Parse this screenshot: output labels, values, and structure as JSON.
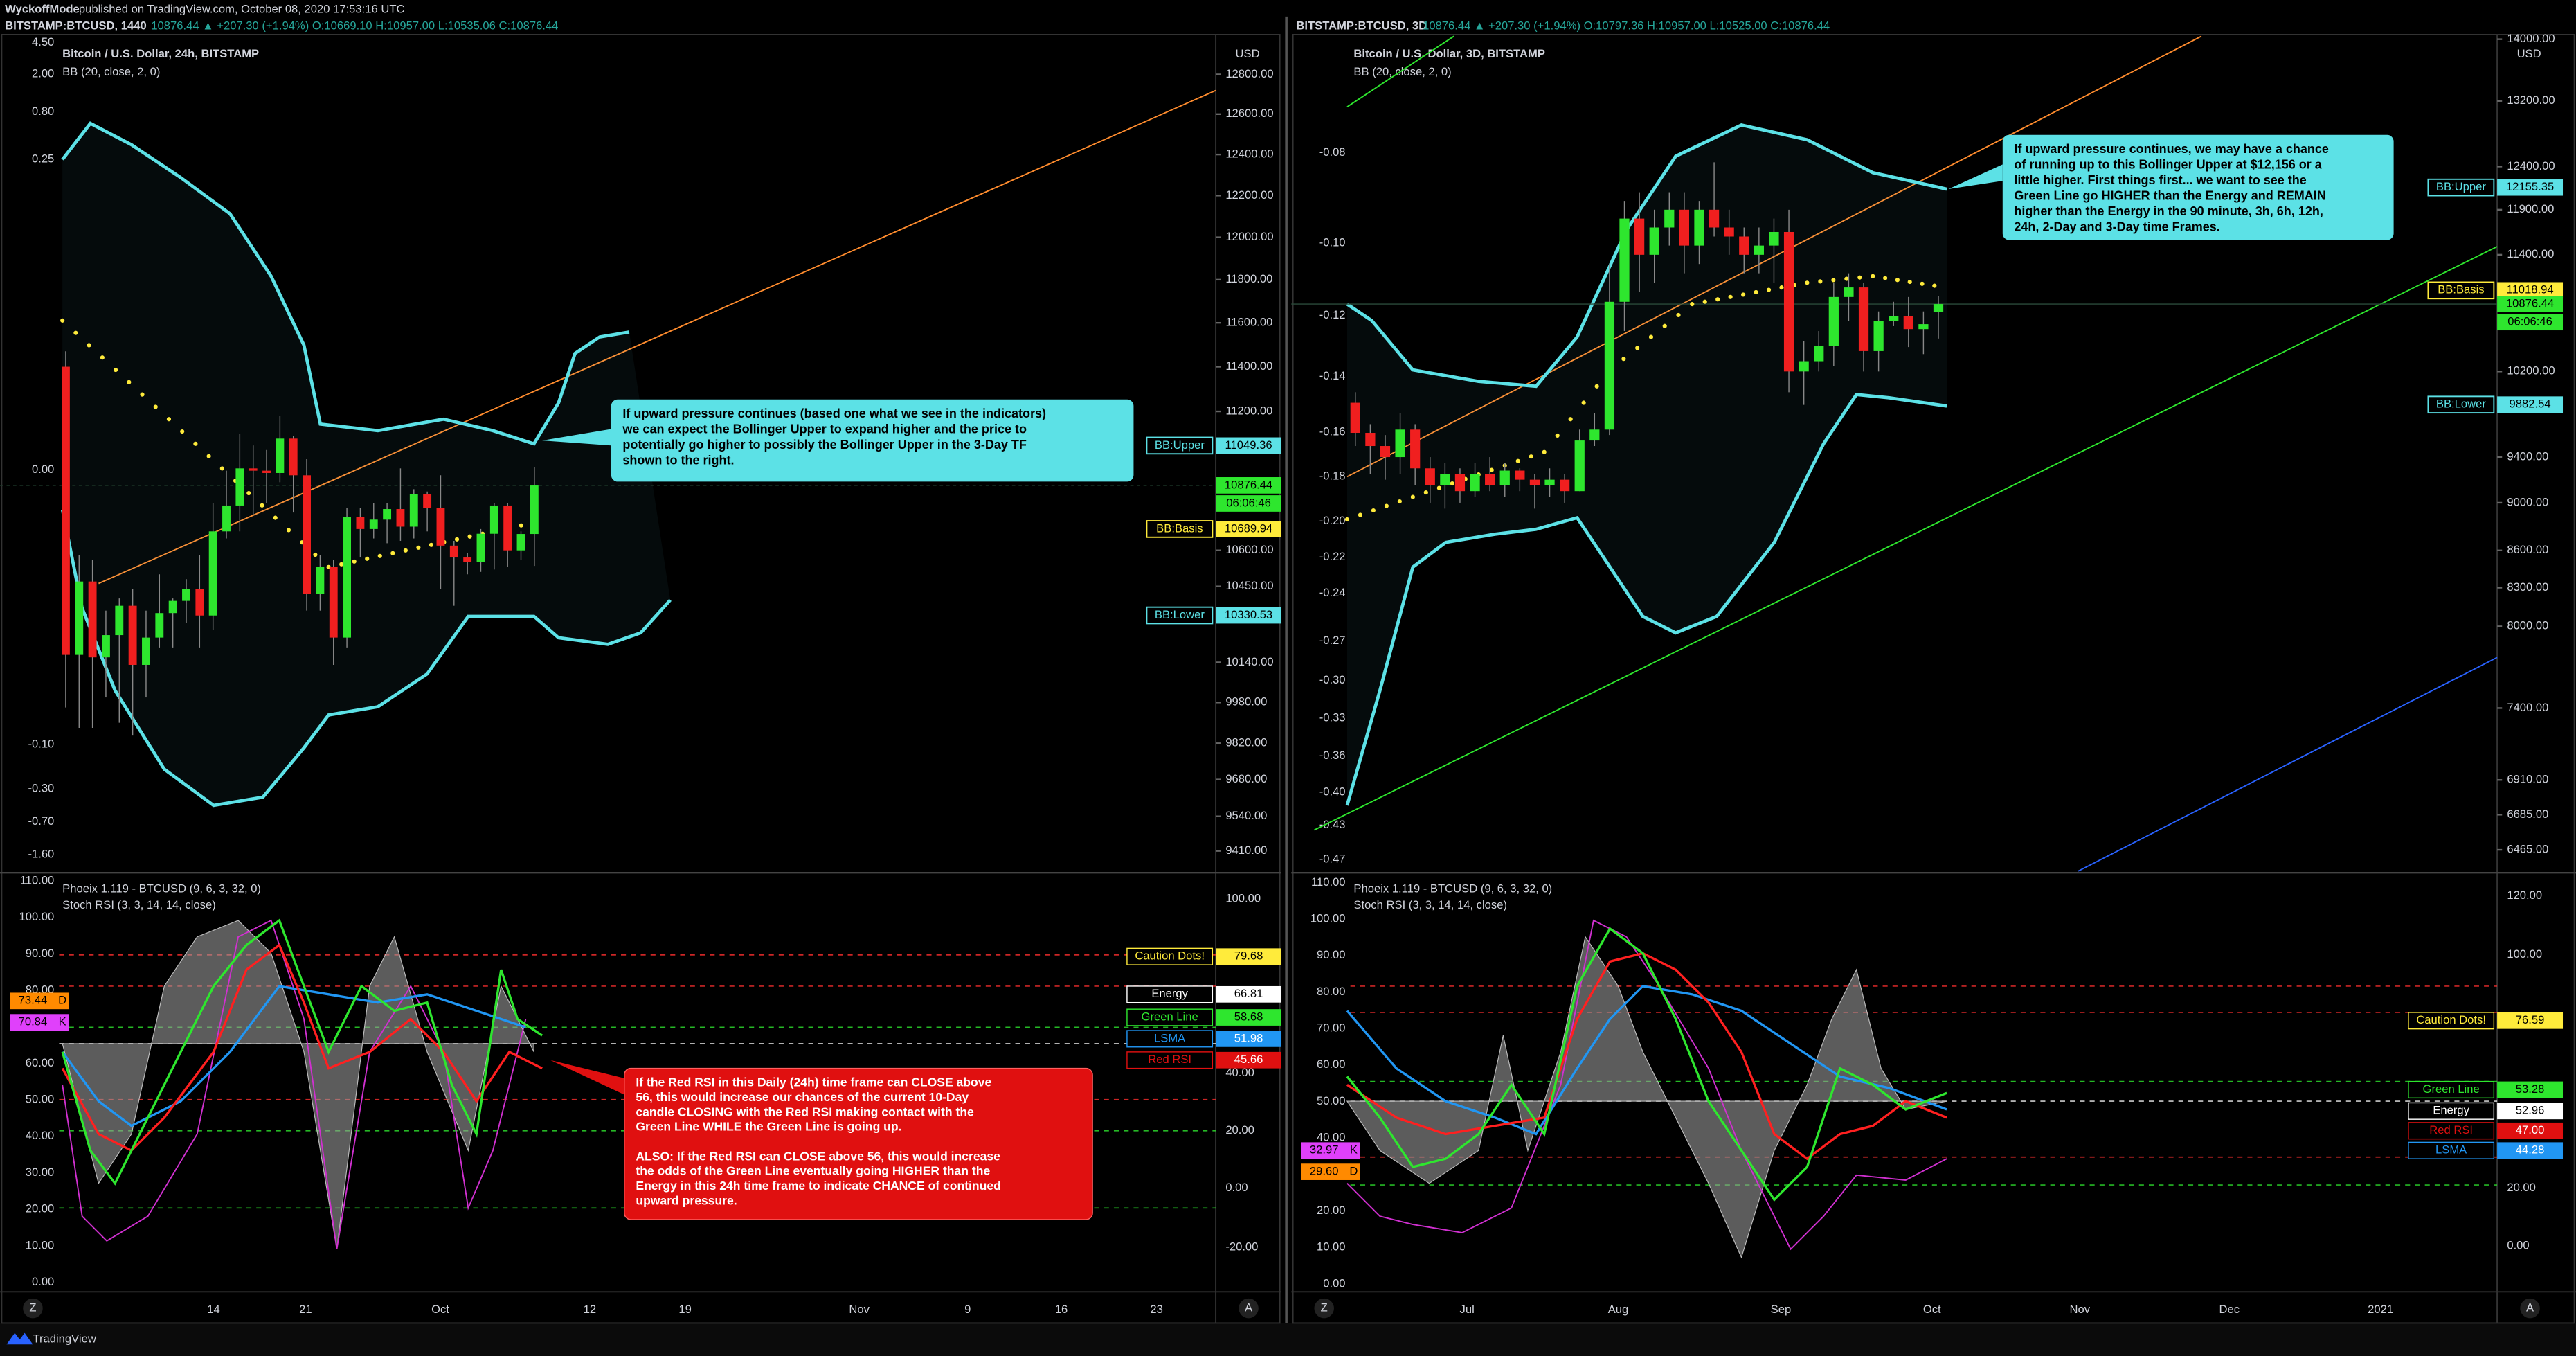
{
  "header": {
    "author": "WyckoffMode",
    "published": "published on TradingView.com, October 08, 2020 17:53:16 UTC"
  },
  "panels": [
    {
      "quote_label": "BITSTAMP:BTCUSD, 1440",
      "quote": "10876.44 ▲ +207.30 (+1.94%) O:10669.10 H:10957.00 L:10535.06 C:10876.44",
      "title": "Bitcoin / U.S. Dollar, 24h, BITSTAMP",
      "study": "BB (20, close, 2, 0)",
      "currency": "USD",
      "osc_ticks": [
        "4.50",
        "2.00",
        "0.80",
        "0.25",
        "0.00",
        "-0.10",
        "-0.30",
        "-0.70",
        "-1.60"
      ],
      "price_axis": {
        "log": true,
        "ylim": [
          9335,
          12995
        ],
        "ticks": [
          {
            "value": 12800,
            "label": "12800.00"
          },
          {
            "value": 12600,
            "label": "12600.00"
          },
          {
            "value": 12400,
            "label": "12400.00"
          },
          {
            "value": 12200,
            "label": "12200.00"
          },
          {
            "value": 12000,
            "label": "12000.00"
          },
          {
            "value": 11800,
            "label": "11800.00"
          },
          {
            "value": 11600,
            "label": "11600.00"
          },
          {
            "value": 11400,
            "label": "11400.00"
          },
          {
            "value": 11200,
            "label": "11200.00"
          },
          {
            "value": 10600,
            "label": "10600.00"
          },
          {
            "value": 10450,
            "label": "10450.00"
          },
          {
            "value": 10140,
            "label": "10140.00"
          },
          {
            "value": 9980,
            "label": "9980.00"
          },
          {
            "value": 9820,
            "label": "9820.00"
          },
          {
            "value": 9680,
            "label": "9680.00"
          },
          {
            "value": 9540,
            "label": "9540.00"
          },
          {
            "value": 9410,
            "label": "9410.00"
          }
        ]
      },
      "bands": [
        {
          "name": "BB:Upper",
          "value": 11049.36
        },
        {
          "name": "BB:Basis",
          "value": 10689.94
        },
        {
          "name": "BB:Lower",
          "value": 10330.53
        }
      ],
      "last": 10876.44,
      "countdown": "06:06:46",
      "candles": {
        "open": [
          11400,
          10170,
          10470,
          10160,
          10250,
          10370,
          10130,
          10240,
          10340,
          10390,
          10440,
          10330,
          10680,
          10790,
          10950,
          10940,
          10930,
          11080,
          10920,
          10420,
          10530,
          10240,
          10740,
          10690,
          10730,
          10775,
          10700,
          10840,
          10780,
          10620,
          10570,
          10550,
          10670,
          10790,
          10600,
          10669
        ],
        "high": [
          11470,
          10580,
          10560,
          10350,
          10400,
          10440,
          10350,
          10500,
          10400,
          10480,
          10580,
          10800,
          10940,
          11100,
          11050,
          11030,
          11180,
          11090,
          10990,
          10580,
          10560,
          10780,
          10780,
          10800,
          10800,
          10950,
          10860,
          10850,
          10920,
          10640,
          10590,
          10690,
          10800,
          10800,
          10680,
          10957
        ],
        "low": [
          9960,
          9880,
          9880,
          10000,
          9900,
          9850,
          10000,
          10200,
          10200,
          10300,
          10200,
          10270,
          10650,
          10680,
          10750,
          10800,
          10890,
          10760,
          10350,
          10350,
          10130,
          10200,
          10570,
          10650,
          10630,
          10640,
          10650,
          10680,
          10440,
          10370,
          10500,
          10510,
          10520,
          10530,
          10560,
          10535
        ],
        "close": [
          10170,
          10470,
          10160,
          10250,
          10370,
          10130,
          10240,
          10340,
          10390,
          10440,
          10330,
          10680,
          10790,
          10950,
          10940,
          10930,
          11080,
          10920,
          10420,
          10530,
          10240,
          10740,
          10690,
          10730,
          10775,
          10700,
          10840,
          10780,
          10620,
          10570,
          10550,
          10670,
          10790,
          10600,
          10669,
          10876
        ]
      },
      "annotation": [
        "If upward pressure continues (based one what we see in the indicators)",
        "we can expect the Bollinger Upper to expand higher and the price to",
        "potentially go higher to possibly the Bollinger Upper in the 3-Day TF",
        "shown to the right."
      ],
      "indicator": {
        "title": "Phoeix 1.119 - BTCUSD (9, 6, 3, 32, 0)",
        "study": "Stoch RSI (3, 3, 14, 14, close)",
        "left_ticks": [
          "110.00",
          "100.00",
          "90.00",
          "80.00",
          "70.00",
          "60.00",
          "50.00",
          "40.00",
          "30.00",
          "20.00",
          "10.00",
          "0.00"
        ],
        "right_ticks": [
          "100.00",
          "40.00",
          "20.00",
          "0.00",
          "-20.00"
        ],
        "tags": [
          {
            "name": "Caution Dots!",
            "value": "79.68"
          },
          {
            "name": "Energy",
            "value": "66.81"
          },
          {
            "name": "Green Line",
            "value": "58.68"
          },
          {
            "name": "LSMA",
            "value": "51.98"
          },
          {
            "name": "Red RSI",
            "value": "45.66"
          }
        ],
        "side_tags": [
          {
            "value": "73.44",
            "name": "D"
          },
          {
            "value": "70.84",
            "name": "K"
          }
        ],
        "note": [
          [
            "If the Red RSI in this Daily (24h) time frame can CLOSE above",
            "56, this would increase our chances of the current 10-Day",
            "candle CLOSING with the Red RSI making contact with the",
            "Green Line WHILE the Green Line is going up."
          ],
          [
            "ALSO:  If the Red RSI can CLOSE above 56, this would increase",
            "the odds of the Green Line eventually going HIGHER than the",
            "Energy in this 24h time frame to indicate CHANCE of continued",
            "upward pressure."
          ]
        ]
      },
      "time_labels": [
        "14",
        "21",
        "Oct",
        "12",
        "19",
        "Nov",
        "9",
        "16",
        "23"
      ]
    },
    {
      "quote_label": "BITSTAMP:BTCUSD, 3D",
      "quote": "10876.44 ▲ +207.30 (+1.94%) O:10797.36 H:10957.00 L:10525.00 C:10876.44",
      "title": "Bitcoin / U.S. Dollar, 3D, BITSTAMP",
      "study": "BB (20, close, 2, 0)",
      "currency": "USD",
      "osc_ticks": [
        "-0.08",
        "-0.10",
        "-0.12",
        "-0.14",
        "-0.16",
        "-0.18",
        "-0.20",
        "-0.22",
        "-0.24",
        "-0.27",
        "-0.30",
        "-0.33",
        "-0.36",
        "-0.40",
        "-0.43",
        "-0.47"
      ],
      "price_axis": {
        "log": true,
        "ylim": [
          6335,
          14040
        ],
        "ticks": [
          {
            "value": 14000,
            "label": "14000.00"
          },
          {
            "value": 13200,
            "label": "13200.00"
          },
          {
            "value": 12400,
            "label": "12400.00"
          },
          {
            "value": 11900,
            "label": "11900.00"
          },
          {
            "value": 11400,
            "label": "11400.00"
          },
          {
            "value": 10200,
            "label": "10200.00"
          },
          {
            "value": 9400,
            "label": "9400.00"
          },
          {
            "value": 9000,
            "label": "9000.00"
          },
          {
            "value": 8600,
            "label": "8600.00"
          },
          {
            "value": 8300,
            "label": "8300.00"
          },
          {
            "value": 8000,
            "label": "8000.00"
          },
          {
            "value": 7400,
            "label": "7400.00"
          },
          {
            "value": 6910,
            "label": "6910.00"
          },
          {
            "value": 6685,
            "label": "6685.00"
          },
          {
            "value": 6465,
            "label": "6465.00"
          }
        ]
      },
      "bands": [
        {
          "name": "BB:Upper",
          "value": 12155.35
        },
        {
          "name": "BB:Basis",
          "value": 11018.94
        },
        {
          "name": "BB:Lower",
          "value": 9882.54
        }
      ],
      "last": 10876.44,
      "countdown": "06:06:46",
      "candles": {
        "open": [
          9900,
          9620,
          9500,
          9400,
          9650,
          9300,
          9150,
          9250,
          9100,
          9250,
          9150,
          9280,
          9200,
          9150,
          9200,
          9100,
          9550,
          9650,
          10900,
          11800,
          11400,
          11700,
          11900,
          11500,
          11900,
          11700,
          11600,
          11400,
          11500,
          11650,
          10200,
          10300,
          10450,
          10950,
          11050,
          10400,
          10700,
          10750,
          10620,
          10797.36
        ],
        "high": [
          10000,
          9700,
          9600,
          9800,
          9700,
          9400,
          9350,
          9300,
          9350,
          9400,
          9350,
          9300,
          9250,
          9300,
          9250,
          9650,
          9800,
          11300,
          12000,
          12100,
          11900,
          12100,
          12100,
          12000,
          12450,
          11900,
          11700,
          11700,
          11800,
          11900,
          10500,
          10600,
          11100,
          11200,
          11100,
          10800,
          10900,
          10950,
          10800,
          10957
        ],
        "low": [
          9500,
          9250,
          9200,
          9250,
          9150,
          9000,
          8950,
          9000,
          9050,
          9100,
          9050,
          9100,
          8950,
          9050,
          9000,
          9100,
          9500,
          9600,
          10600,
          11000,
          11100,
          11500,
          11200,
          11300,
          11600,
          11400,
          11200,
          11200,
          11100,
          10000,
          9880,
          10200,
          10250,
          10700,
          10200,
          10200,
          10650,
          10440,
          10370,
          10525
        ],
        "close": [
          9620,
          9500,
          9400,
          9650,
          9300,
          9150,
          9250,
          9100,
          9250,
          9150,
          9280,
          9200,
          9150,
          9200,
          9100,
          9550,
          9650,
          10900,
          11800,
          11400,
          11700,
          11900,
          11500,
          11900,
          11700,
          11600,
          11400,
          11500,
          11650,
          10200,
          10300,
          10450,
          10950,
          11050,
          10400,
          10700,
          10750,
          10620,
          10670,
          10876.44
        ]
      },
      "annotation": [
        "If upward pressure continues, we may have a chance",
        "of running up to this Bollinger Upper at $12,156 or a",
        "little higher.  First things first... we want to see the",
        "Green Line go HIGHER than the Energy and REMAIN",
        "higher than the Energy in the 90 minute, 3h, 6h, 12h,",
        "24h, 2-Day and 3-Day time Frames."
      ],
      "indicator": {
        "title": "Phoeix 1.119 - BTCUSD (9, 6, 3, 32, 0)",
        "study": "Stoch RSI (3, 3, 14, 14, close)",
        "left_ticks": [
          "110.00",
          "100.00",
          "90.00",
          "80.00",
          "70.00",
          "60.00",
          "50.00",
          "40.00",
          "30.00",
          "20.00",
          "10.00",
          "0.00"
        ],
        "right_ticks": [
          "120.00",
          "100.00",
          "20.00",
          "0.00"
        ],
        "tags": [
          {
            "name": "Caution Dots!",
            "value": "76.59"
          },
          {
            "name": "Green Line",
            "value": "53.28"
          },
          {
            "name": "Energy",
            "value": "52.96"
          },
          {
            "name": "Red RSI",
            "value": "47.00"
          },
          {
            "name": "LSMA",
            "value": "44.28"
          }
        ],
        "side_tags": [
          {
            "value": "32.97",
            "name": "K"
          },
          {
            "value": "29.60",
            "name": "D"
          }
        ]
      },
      "time_labels": [
        "Jul",
        "Aug",
        "Sep",
        "Oct",
        "Nov",
        "Dec",
        "2021"
      ]
    }
  ],
  "footer": {
    "brand": "TradingView",
    "zoom": "Z",
    "auto": "A"
  }
}
